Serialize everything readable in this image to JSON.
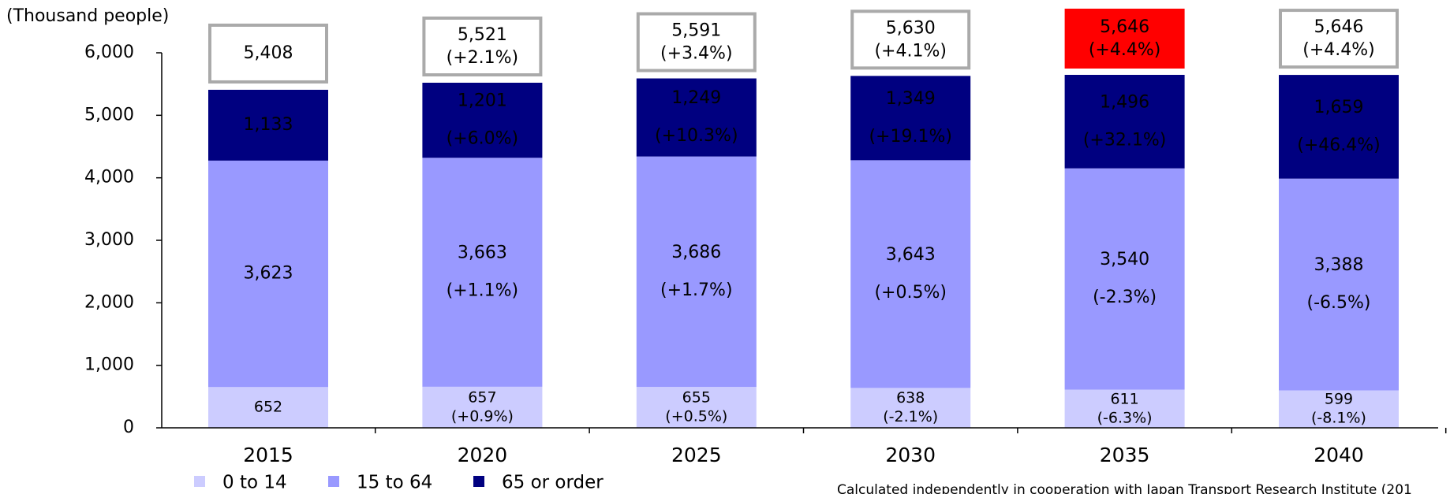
{
  "chart_data": {
    "type": "stacked_bar",
    "y_unit_label": "(Thousand people)",
    "categories": [
      "2015",
      "2020",
      "2025",
      "2030",
      "2035",
      "2040"
    ],
    "series": [
      {
        "name": "0 to 14",
        "color": "#ccccff",
        "text_color": "#000000",
        "values": [
          652,
          657,
          655,
          638,
          611,
          599
        ],
        "value_labels": [
          "652",
          "657",
          "655",
          "638",
          "611",
          "599"
        ],
        "change_labels": [
          null,
          "(+0.9%)",
          "(+0.5%)",
          "(-2.1%)",
          "(-6.3%)",
          "(-8.1%)"
        ]
      },
      {
        "name": "15 to 64",
        "color": "#9999ff",
        "text_color": "#000000",
        "values": [
          3623,
          3663,
          3686,
          3643,
          3540,
          3388
        ],
        "value_labels": [
          "3,623",
          "3,663",
          "3,686",
          "3,643",
          "3,540",
          "3,388"
        ],
        "change_labels": [
          null,
          "(+1.1%)",
          "(+1.7%)",
          "(+0.5%)",
          "(-2.3%)",
          "(-6.5%)"
        ]
      },
      {
        "name": "65 or order",
        "color": "#000080",
        "text_color": "#ffffff",
        "values": [
          1133,
          1201,
          1249,
          1349,
          1496,
          1659
        ],
        "value_labels": [
          "1,133",
          "1,201",
          "1,249",
          "1,349",
          "1,496",
          "1,659"
        ],
        "change_labels": [
          null,
          "(+6.0%)",
          "(+10.3%)",
          "(+19.1%)",
          "(+32.1%)",
          "(+46.4%)"
        ]
      }
    ],
    "totals": [
      5408,
      5521,
      5591,
      5630,
      5646,
      5646
    ],
    "total_labels": [
      "5,408",
      "5,521",
      "5,591",
      "5,630",
      "5,646",
      "5,646"
    ],
    "total_changes": [
      null,
      "(+2.1%)",
      "(+3.4%)",
      "(+4.1%)",
      "(+4.4%)",
      "(+4.4%)"
    ],
    "total_box_fills": [
      "#ffffff",
      "#ffffff",
      "#ffffff",
      "#ffffff",
      "#ff0000",
      "#ffffff"
    ],
    "total_box_strokes": [
      "#aaaaaa",
      "#aaaaaa",
      "#aaaaaa",
      "#aaaaaa",
      "#ff0000",
      "#aaaaaa"
    ],
    "total_text_colors": [
      "#000000",
      "#000000",
      "#000000",
      "#000000",
      "#ffffff",
      "#000000"
    ],
    "ylim": [
      0,
      6000
    ],
    "yticks": [
      0,
      {
        "value": 1000,
        "label": "1,000"
      },
      {
        "value": 2000,
        "label": "2,000"
      },
      {
        "value": 3000,
        "label": "3,000"
      },
      {
        "value": 4000,
        "label": "4,000"
      },
      {
        "value": 5000,
        "label": "5,000"
      },
      {
        "value": 6000,
        "label": "6,000"
      }
    ],
    "footnote": "Calculated independently in cooperation with Japan Transport Research Institute (201"
  }
}
